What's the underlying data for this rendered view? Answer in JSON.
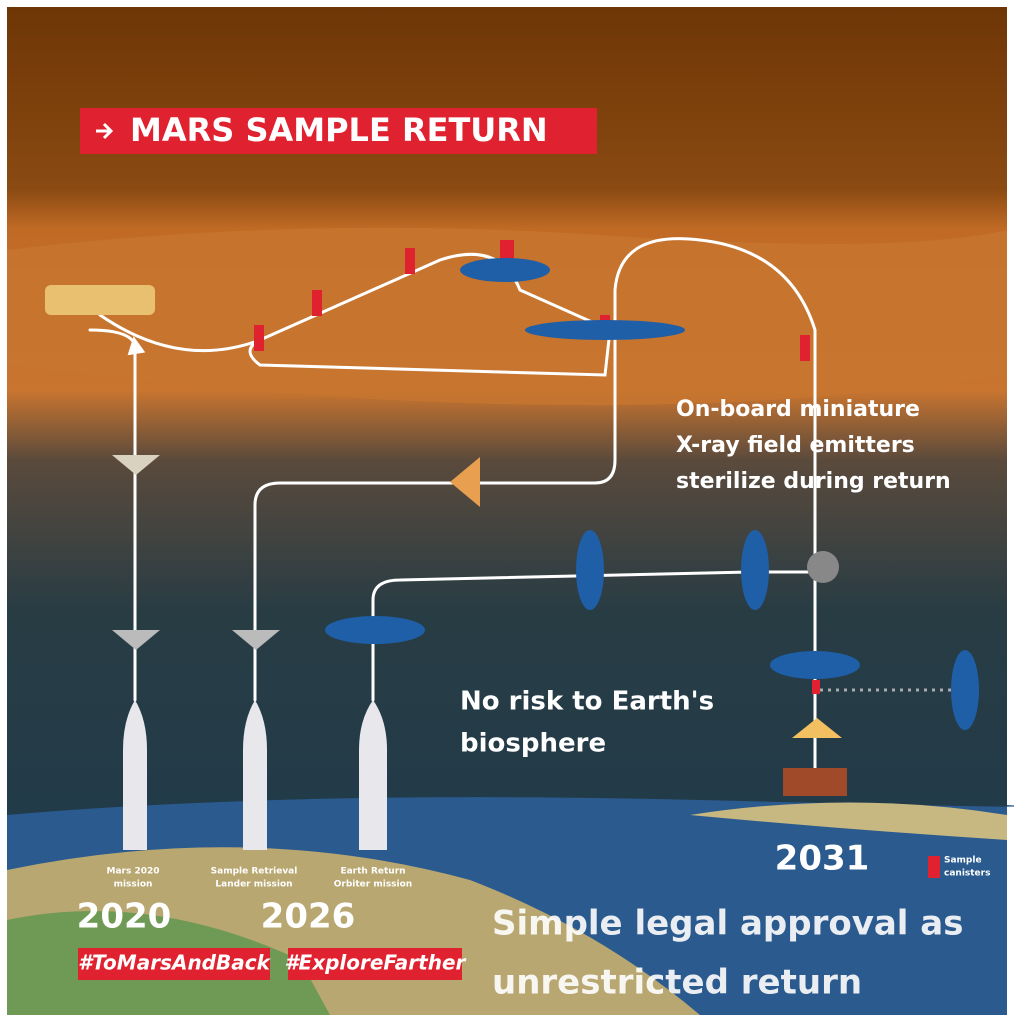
{
  "header": {
    "title": "MARS SAMPLE RETURN"
  },
  "annotations": {
    "sterilize": [
      "On-board miniature",
      "X-ray field emitters",
      "sterilize during return"
    ],
    "biosphere": [
      "No risk to Earth's",
      "biosphere"
    ],
    "legal": [
      "Simple legal approval as",
      "unrestricted return"
    ]
  },
  "missions": [
    {
      "label": [
        "Mars 2020",
        "mission"
      ],
      "year": "2020"
    },
    {
      "label": [
        "Sample Retrieval",
        "Lander mission"
      ],
      "year": "2026"
    },
    {
      "label": [
        "Earth Return",
        "Orbiter mission"
      ],
      "year": "2031"
    }
  ],
  "legend": [
    "Sample",
    "canisters"
  ],
  "hashtags": [
    "#ToMarsAndBack",
    "#ExploreFarther"
  ]
}
